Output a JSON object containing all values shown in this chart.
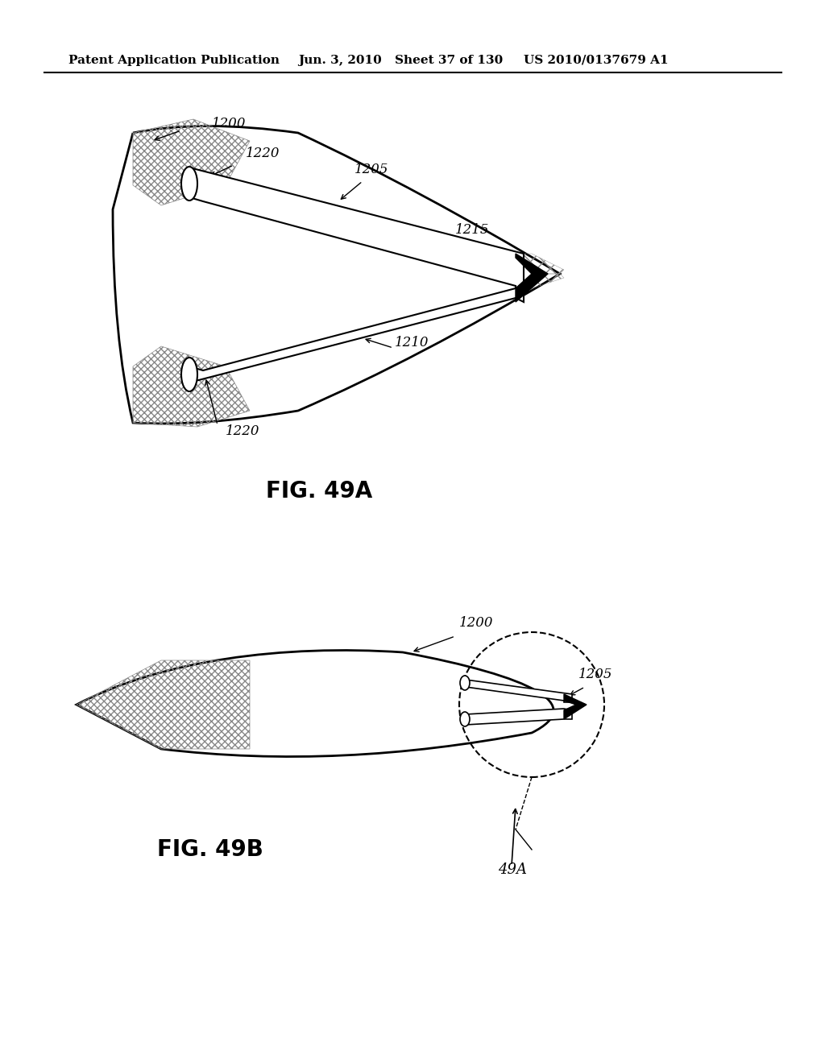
{
  "bg_color": "#ffffff",
  "header_text": "Patent Application Publication",
  "header_date": "Jun. 3, 2010",
  "header_sheet": "Sheet 37 of 130",
  "header_patent": "US 2010/0137679 A1",
  "fig49a_label": "FIG. 49A",
  "fig49b_label": "FIG. 49B",
  "label_1200_a": "1200",
  "label_1220_a_top": "1220",
  "label_1205_a": "1205",
  "label_1215_a": "1215",
  "label_1210_a": "1210",
  "label_1220_a_bot": "1220",
  "label_1200_b": "1200",
  "label_1205_b": "1205",
  "label_49a": "49A",
  "line_color": "#000000",
  "hatch_color": "#aaaaaa"
}
